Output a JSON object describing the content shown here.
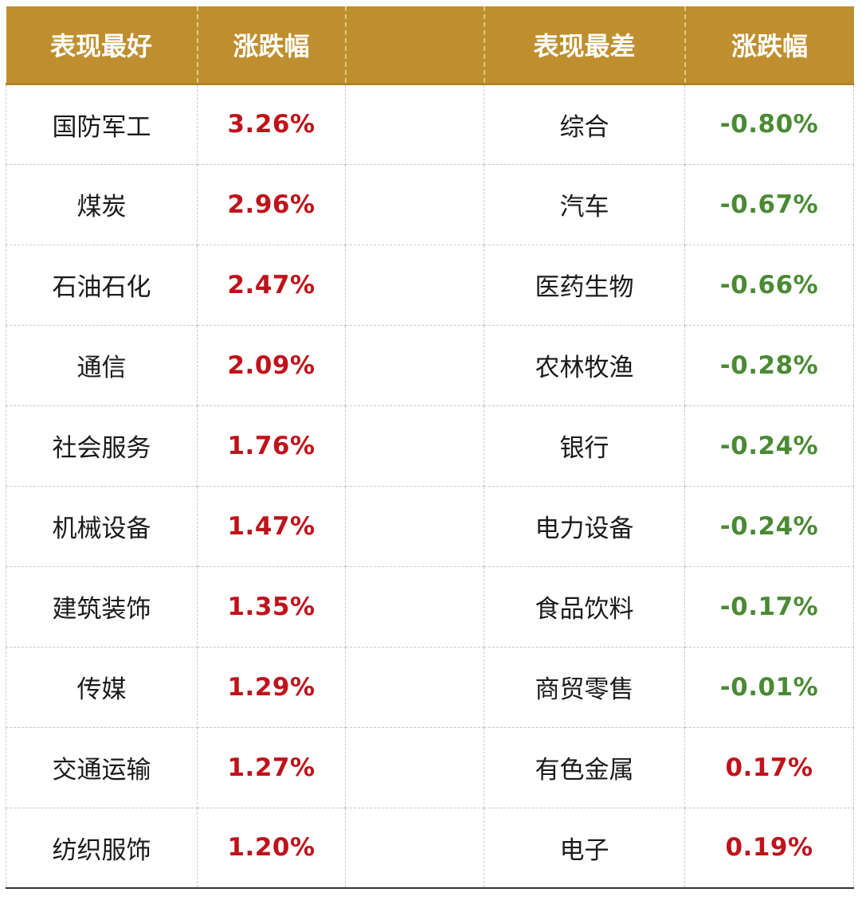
{
  "header": {
    "best_label": "表现最好",
    "best_change_label": "涨跌幅",
    "spacer_label": "",
    "worst_label": "表现最差",
    "worst_change_label": "涨跌幅"
  },
  "colors": {
    "header_bg": "#bf8f2f",
    "header_text": "#ffffff",
    "positive": "#c0121b",
    "negative": "#4a8a34"
  },
  "rows": [
    {
      "best_name": "国防军工",
      "best_change": "3.26%",
      "worst_name": "综合",
      "worst_change": "-0.80%"
    },
    {
      "best_name": "煤炭",
      "best_change": "2.96%",
      "worst_name": "汽车",
      "worst_change": "-0.67%"
    },
    {
      "best_name": "石油石化",
      "best_change": "2.47%",
      "worst_name": "医药生物",
      "worst_change": "-0.66%"
    },
    {
      "best_name": "通信",
      "best_change": "2.09%",
      "worst_name": "农林牧渔",
      "worst_change": "-0.28%"
    },
    {
      "best_name": "社会服务",
      "best_change": "1.76%",
      "worst_name": "银行",
      "worst_change": "-0.24%"
    },
    {
      "best_name": "机械设备",
      "best_change": "1.47%",
      "worst_name": "电力设备",
      "worst_change": "-0.24%"
    },
    {
      "best_name": "建筑装饰",
      "best_change": "1.35%",
      "worst_name": "食品饮料",
      "worst_change": "-0.17%"
    },
    {
      "best_name": "传媒",
      "best_change": "1.29%",
      "worst_name": "商贸零售",
      "worst_change": "-0.01%"
    },
    {
      "best_name": "交通运输",
      "best_change": "1.27%",
      "worst_name": "有色金属",
      "worst_change": "0.17%"
    },
    {
      "best_name": "纺织服饰",
      "best_change": "1.20%",
      "worst_name": "电子",
      "worst_change": "0.19%"
    }
  ]
}
